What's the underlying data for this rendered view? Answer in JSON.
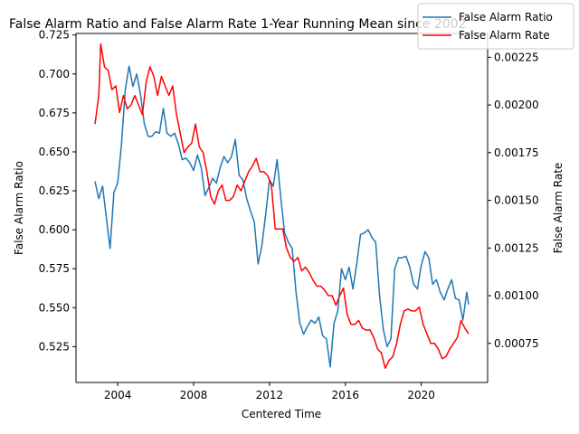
{
  "chart_data": {
    "type": "line",
    "title": "False Alarm Ratio and False Alarm Rate 1-Year Running Mean since 2002",
    "xlabel": "Centered Time",
    "ylabel_left": "False Alarm Ratio",
    "ylabel_right": "False Alarm Rate",
    "xlim": [
      2001.8,
      2023.5
    ],
    "ylim_left": [
      0.502,
      0.726
    ],
    "ylim_right": [
      0.000545,
      0.002375
    ],
    "x_ticks": [
      "2004",
      "2008",
      "2012",
      "2016",
      "2020"
    ],
    "y_left_ticks": [
      "0.525",
      "0.550",
      "0.575",
      "0.600",
      "0.625",
      "0.650",
      "0.675",
      "0.700",
      "0.725"
    ],
    "y_right_ticks": [
      "0.00075",
      "0.00100",
      "0.00125",
      "0.00150",
      "0.00175",
      "0.00200",
      "0.00225"
    ],
    "legend": {
      "placement": "top-right"
    },
    "grid": false,
    "series": [
      {
        "name": "False Alarm Ratio",
        "axis": "left",
        "color": "#1f77b4",
        "points": [
          [
            2002.8,
            0.631
          ],
          [
            2003.0,
            0.62
          ],
          [
            2003.2,
            0.628
          ],
          [
            2003.4,
            0.608
          ],
          [
            2003.6,
            0.588
          ],
          [
            2003.8,
            0.624
          ],
          [
            2004.0,
            0.63
          ],
          [
            2004.2,
            0.655
          ],
          [
            2004.4,
            0.69
          ],
          [
            2004.6,
            0.705
          ],
          [
            2004.8,
            0.692
          ],
          [
            2005.0,
            0.7
          ],
          [
            2005.2,
            0.687
          ],
          [
            2005.4,
            0.668
          ],
          [
            2005.6,
            0.66
          ],
          [
            2005.8,
            0.66
          ],
          [
            2006.0,
            0.663
          ],
          [
            2006.2,
            0.662
          ],
          [
            2006.4,
            0.678
          ],
          [
            2006.6,
            0.662
          ],
          [
            2006.8,
            0.66
          ],
          [
            2007.0,
            0.662
          ],
          [
            2007.2,
            0.655
          ],
          [
            2007.4,
            0.645
          ],
          [
            2007.6,
            0.646
          ],
          [
            2007.8,
            0.643
          ],
          [
            2008.0,
            0.638
          ],
          [
            2008.2,
            0.648
          ],
          [
            2008.4,
            0.64
          ],
          [
            2008.6,
            0.622
          ],
          [
            2008.8,
            0.627
          ],
          [
            2009.0,
            0.633
          ],
          [
            2009.2,
            0.63
          ],
          [
            2009.4,
            0.64
          ],
          [
            2009.6,
            0.647
          ],
          [
            2009.8,
            0.643
          ],
          [
            2010.0,
            0.647
          ],
          [
            2010.2,
            0.658
          ],
          [
            2010.4,
            0.635
          ],
          [
            2010.6,
            0.632
          ],
          [
            2010.8,
            0.62
          ],
          [
            2011.0,
            0.612
          ],
          [
            2011.2,
            0.605
          ],
          [
            2011.4,
            0.578
          ],
          [
            2011.6,
            0.59
          ],
          [
            2011.8,
            0.61
          ],
          [
            2012.0,
            0.632
          ],
          [
            2012.2,
            0.628
          ],
          [
            2012.4,
            0.645
          ],
          [
            2012.6,
            0.62
          ],
          [
            2012.8,
            0.598
          ],
          [
            2013.0,
            0.592
          ],
          [
            2013.2,
            0.588
          ],
          [
            2013.4,
            0.56
          ],
          [
            2013.6,
            0.54
          ],
          [
            2013.8,
            0.533
          ],
          [
            2014.0,
            0.538
          ],
          [
            2014.2,
            0.542
          ],
          [
            2014.4,
            0.54
          ],
          [
            2014.6,
            0.544
          ],
          [
            2014.8,
            0.532
          ],
          [
            2015.0,
            0.53
          ],
          [
            2015.2,
            0.512
          ],
          [
            2015.4,
            0.54
          ],
          [
            2015.6,
            0.548
          ],
          [
            2015.8,
            0.575
          ],
          [
            2016.0,
            0.568
          ],
          [
            2016.2,
            0.576
          ],
          [
            2016.4,
            0.562
          ],
          [
            2016.6,
            0.578
          ],
          [
            2016.8,
            0.597
          ],
          [
            2017.0,
            0.598
          ],
          [
            2017.2,
            0.6
          ],
          [
            2017.4,
            0.595
          ],
          [
            2017.6,
            0.592
          ],
          [
            2017.8,
            0.558
          ],
          [
            2018.0,
            0.536
          ],
          [
            2018.2,
            0.525
          ],
          [
            2018.4,
            0.53
          ],
          [
            2018.6,
            0.575
          ],
          [
            2018.8,
            0.582
          ],
          [
            2019.0,
            0.582
          ],
          [
            2019.2,
            0.583
          ],
          [
            2019.4,
            0.576
          ],
          [
            2019.6,
            0.565
          ],
          [
            2019.8,
            0.562
          ],
          [
            2020.0,
            0.577
          ],
          [
            2020.2,
            0.586
          ],
          [
            2020.4,
            0.582
          ],
          [
            2020.6,
            0.565
          ],
          [
            2020.8,
            0.568
          ],
          [
            2021.0,
            0.56
          ],
          [
            2021.2,
            0.555
          ],
          [
            2021.4,
            0.562
          ],
          [
            2021.6,
            0.568
          ],
          [
            2021.8,
            0.556
          ],
          [
            2022.0,
            0.555
          ],
          [
            2022.2,
            0.542
          ],
          [
            2022.4,
            0.56
          ],
          [
            2022.5,
            0.552
          ]
        ]
      },
      {
        "name": "False Alarm Rate",
        "axis": "right",
        "color": "#ff0000",
        "points": [
          [
            2002.8,
            0.0019
          ],
          [
            2003.0,
            0.00205
          ],
          [
            2003.1,
            0.00232
          ],
          [
            2003.3,
            0.0022
          ],
          [
            2003.5,
            0.00218
          ],
          [
            2003.7,
            0.00208
          ],
          [
            2003.9,
            0.0021
          ],
          [
            2004.1,
            0.00196
          ],
          [
            2004.3,
            0.00205
          ],
          [
            2004.5,
            0.00198
          ],
          [
            2004.7,
            0.002
          ],
          [
            2004.9,
            0.00205
          ],
          [
            2005.1,
            0.002
          ],
          [
            2005.3,
            0.00195
          ],
          [
            2005.5,
            0.00212
          ],
          [
            2005.7,
            0.0022
          ],
          [
            2005.9,
            0.00215
          ],
          [
            2006.1,
            0.00205
          ],
          [
            2006.3,
            0.00215
          ],
          [
            2006.5,
            0.0021
          ],
          [
            2006.7,
            0.00205
          ],
          [
            2006.9,
            0.0021
          ],
          [
            2007.1,
            0.00195
          ],
          [
            2007.3,
            0.00185
          ],
          [
            2007.5,
            0.00175
          ],
          [
            2007.7,
            0.00178
          ],
          [
            2007.9,
            0.0018
          ],
          [
            2008.1,
            0.0019
          ],
          [
            2008.3,
            0.00178
          ],
          [
            2008.5,
            0.00175
          ],
          [
            2008.7,
            0.00165
          ],
          [
            2008.9,
            0.00152
          ],
          [
            2009.1,
            0.00148
          ],
          [
            2009.3,
            0.00155
          ],
          [
            2009.5,
            0.00158
          ],
          [
            2009.7,
            0.0015
          ],
          [
            2009.9,
            0.0015
          ],
          [
            2010.1,
            0.00152
          ],
          [
            2010.3,
            0.00158
          ],
          [
            2010.5,
            0.00155
          ],
          [
            2010.7,
            0.0016
          ],
          [
            2010.9,
            0.00165
          ],
          [
            2011.1,
            0.00168
          ],
          [
            2011.3,
            0.00172
          ],
          [
            2011.5,
            0.00165
          ],
          [
            2011.7,
            0.00165
          ],
          [
            2011.9,
            0.00163
          ],
          [
            2012.1,
            0.00158
          ],
          [
            2012.3,
            0.00135
          ],
          [
            2012.5,
            0.00135
          ],
          [
            2012.7,
            0.00135
          ],
          [
            2012.9,
            0.00125
          ],
          [
            2013.1,
            0.0012
          ],
          [
            2013.3,
            0.00118
          ],
          [
            2013.5,
            0.0012
          ],
          [
            2013.7,
            0.00113
          ],
          [
            2013.9,
            0.00115
          ],
          [
            2014.1,
            0.00112
          ],
          [
            2014.3,
            0.00108
          ],
          [
            2014.5,
            0.00105
          ],
          [
            2014.7,
            0.00105
          ],
          [
            2014.9,
            0.00103
          ],
          [
            2015.1,
            0.001
          ],
          [
            2015.3,
            0.001
          ],
          [
            2015.5,
            0.00095
          ],
          [
            2015.7,
            0.001
          ],
          [
            2015.9,
            0.00104
          ],
          [
            2016.1,
            0.0009
          ],
          [
            2016.3,
            0.00085
          ],
          [
            2016.5,
            0.00085
          ],
          [
            2016.7,
            0.00087
          ],
          [
            2016.9,
            0.00083
          ],
          [
            2017.1,
            0.00082
          ],
          [
            2017.3,
            0.00082
          ],
          [
            2017.5,
            0.00078
          ],
          [
            2017.7,
            0.00072
          ],
          [
            2017.9,
            0.0007
          ],
          [
            2018.1,
            0.00062
          ],
          [
            2018.3,
            0.00066
          ],
          [
            2018.5,
            0.00068
          ],
          [
            2018.7,
            0.00075
          ],
          [
            2018.9,
            0.00085
          ],
          [
            2019.1,
            0.00092
          ],
          [
            2019.3,
            0.00093
          ],
          [
            2019.5,
            0.00092
          ],
          [
            2019.7,
            0.00092
          ],
          [
            2019.9,
            0.00094
          ],
          [
            2020.1,
            0.00085
          ],
          [
            2020.3,
            0.0008
          ],
          [
            2020.5,
            0.00075
          ],
          [
            2020.7,
            0.00075
          ],
          [
            2020.9,
            0.00072
          ],
          [
            2021.1,
            0.00067
          ],
          [
            2021.3,
            0.00068
          ],
          [
            2021.5,
            0.00072
          ],
          [
            2021.7,
            0.00075
          ],
          [
            2021.9,
            0.00078
          ],
          [
            2022.1,
            0.00087
          ],
          [
            2022.3,
            0.00083
          ],
          [
            2022.5,
            0.0008
          ]
        ]
      }
    ]
  }
}
